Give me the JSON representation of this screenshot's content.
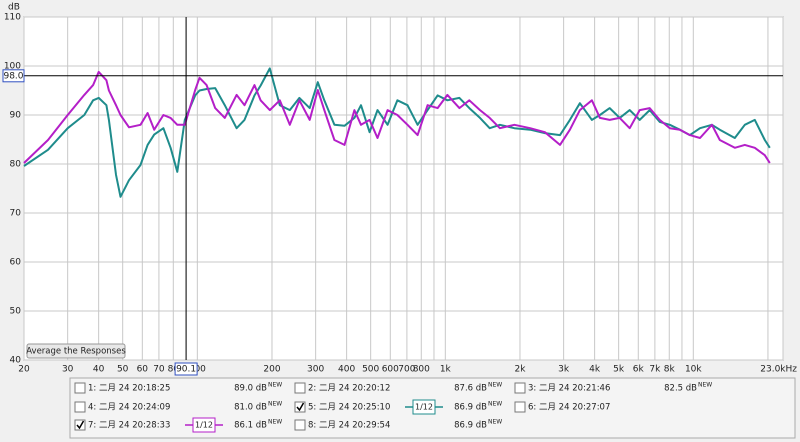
{
  "chart_data": {
    "type": "line",
    "y_label": "dB",
    "log_x": true,
    "grid": true,
    "xlim": [
      20,
      23000
    ],
    "ylim": [
      40,
      110
    ],
    "yticks": [
      40,
      50,
      60,
      70,
      80,
      90,
      100,
      110
    ],
    "xticks": [
      20,
      30,
      40,
      50,
      60,
      70,
      80,
      100,
      200,
      300,
      400,
      500,
      600,
      700,
      800,
      {
        "value": 1000,
        "label": "1k"
      },
      {
        "value": 2000,
        "label": "2k"
      },
      {
        "value": 3000,
        "label": "3k"
      },
      {
        "value": 4000,
        "label": "4k"
      },
      {
        "value": 5000,
        "label": "5k"
      },
      {
        "value": 6000,
        "label": "6k"
      },
      {
        "value": 7000,
        "label": "7k"
      },
      {
        "value": 8000,
        "label": "8k"
      },
      {
        "value": 10000,
        "label": "10k"
      },
      {
        "value": 23000,
        "label": "23.0kHz"
      }
    ],
    "x_minor_grid": [
      90,
      900,
      9000,
      20000
    ],
    "cursor": {
      "x": {
        "value": 90.1,
        "label": "90.1"
      },
      "y": {
        "value": 98,
        "label": "98.0"
      }
    },
    "button": "Average the Responses",
    "x": [
      20,
      25,
      30,
      35,
      38,
      40,
      43,
      44,
      47,
      49,
      53,
      59,
      63,
      67,
      73,
      78,
      83,
      89,
      98,
      102,
      109,
      118,
      129,
      144,
      155,
      170,
      180,
      196,
      215,
      236,
      258,
      284,
      306,
      325,
      357,
      392,
      430,
      457,
      495,
      533,
      585,
      641,
      704,
      773,
      848,
      931,
      1020,
      1140,
      1250,
      1380,
      1510,
      1660,
      1900,
      2200,
      2520,
      2900,
      3180,
      3490,
      3900,
      4200,
      4600,
      5050,
      5540,
      6080,
      6670,
      7320,
      8040,
      8830,
      9690,
      10640,
      11880,
      12790,
      14700,
      16130,
      17700,
      19430,
      20340
    ],
    "series": [
      {
        "name": "5: 二月 24 20:25:10",
        "color": "#1f8c8c",
        "values": [
          79.6,
          82.9,
          87.3,
          90,
          93,
          93.5,
          92,
          89,
          77.8,
          73.3,
          76.7,
          79.8,
          83.9,
          86,
          87.3,
          83.3,
          78.4,
          89,
          94,
          95,
          95.3,
          95.5,
          92,
          87.3,
          89,
          94,
          96,
          99.5,
          92,
          91,
          93.5,
          91.4,
          96.7,
          93,
          88,
          87.8,
          89.4,
          92,
          86.5,
          91,
          88,
          93,
          92,
          88,
          91,
          94,
          93,
          93.5,
          91.4,
          89.4,
          87.3,
          88,
          87.3,
          87,
          86.3,
          85.9,
          89,
          92.4,
          89,
          90,
          91.4,
          89.4,
          91,
          89,
          91,
          88.6,
          88,
          87,
          85.9,
          87.3,
          88,
          87,
          85.3,
          88,
          89,
          84.9,
          83.3
        ]
      },
      {
        "name": "7: 二月 24 20:28:33",
        "color": "#b41fc8",
        "values": [
          80.2,
          84.9,
          90,
          94.1,
          96.1,
          98.8,
          97.1,
          95,
          92,
          90,
          87.5,
          88,
          90.4,
          87,
          90,
          89.4,
          88,
          88,
          95.1,
          97.6,
          96.1,
          91.4,
          89.4,
          94.1,
          92,
          96.1,
          93,
          91,
          93,
          88,
          93,
          89,
          95.1,
          91,
          84.9,
          83.9,
          91,
          88,
          89,
          85.3,
          91,
          90,
          88,
          85.9,
          92,
          91.4,
          94.1,
          91.4,
          93,
          91,
          89.4,
          87.3,
          88,
          87.3,
          86.5,
          83.9,
          87,
          91,
          93,
          89.4,
          89,
          89.4,
          87.3,
          91,
          91.4,
          89,
          87.3,
          87,
          85.9,
          85.3,
          88,
          84.9,
          83.3,
          83.9,
          83.3,
          81.8,
          80.2
        ]
      }
    ],
    "legend_tag": "NEW",
    "legend": [
      {
        "label": "1: 二月 24 20:18:25",
        "level": "89.0 dB",
        "color": "#d9801a",
        "checked": false
      },
      {
        "label": "2: 二月 24 20:20:12",
        "level": "87.6 dB",
        "color": "#22a04a",
        "checked": false
      },
      {
        "label": "3: 二月 24 20:21:46",
        "level": "82.5 dB",
        "color": "#3f6fc0",
        "checked": false
      },
      {
        "label": "4: 二月 24 20:24:09",
        "level": "81.0 dB",
        "color": "#c0601a",
        "checked": false
      },
      {
        "series": 0,
        "level": "86.9 dB",
        "checked": true,
        "smoothing": "1/12"
      },
      {
        "label": "6: 二月 24 20:27:07",
        "color": "#9040c0",
        "checked": false
      },
      {
        "series": 1,
        "level": "86.1 dB",
        "checked": true,
        "smoothing": "1/12"
      },
      {
        "label": "8: 二月 24 20:29:54",
        "level": "86.9 dB",
        "color": "#c02020",
        "checked": false
      }
    ]
  }
}
